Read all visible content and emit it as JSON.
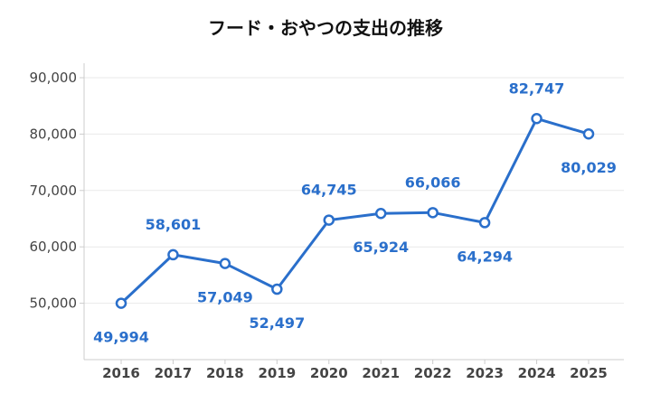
{
  "chart_data": {
    "type": "line",
    "title": "フード・おやつの支出の推移",
    "xlabel": "",
    "ylabel": "",
    "categories": [
      "2016",
      "2017",
      "2018",
      "2019",
      "2020",
      "2021",
      "2022",
      "2023",
      "2024",
      "2025"
    ],
    "values": [
      49994,
      58601,
      57049,
      52497,
      64745,
      65924,
      66066,
      64294,
      82747,
      80029
    ],
    "data_labels": [
      "49,994",
      "58,601",
      "57,049",
      "52,497",
      "64,745",
      "65,924",
      "66,066",
      "64,294",
      "82,747",
      "80,029"
    ],
    "label_position": [
      "below",
      "above",
      "below",
      "below",
      "above",
      "below",
      "above",
      "below",
      "above",
      "below"
    ],
    "ylim": [
      40000,
      90000
    ],
    "yticks": [
      50000,
      60000,
      70000,
      80000,
      90000
    ],
    "ytick_labels": [
      "50,000",
      "60,000",
      "70,000",
      "80,000",
      "90,000"
    ],
    "grid": true,
    "legend": "none",
    "colors": {
      "line": "#2a6fcb",
      "label": "#2a6fcb",
      "marker_fill": "#ffffff",
      "grid": "#e9e9e9",
      "axis": "#cccccc"
    }
  }
}
